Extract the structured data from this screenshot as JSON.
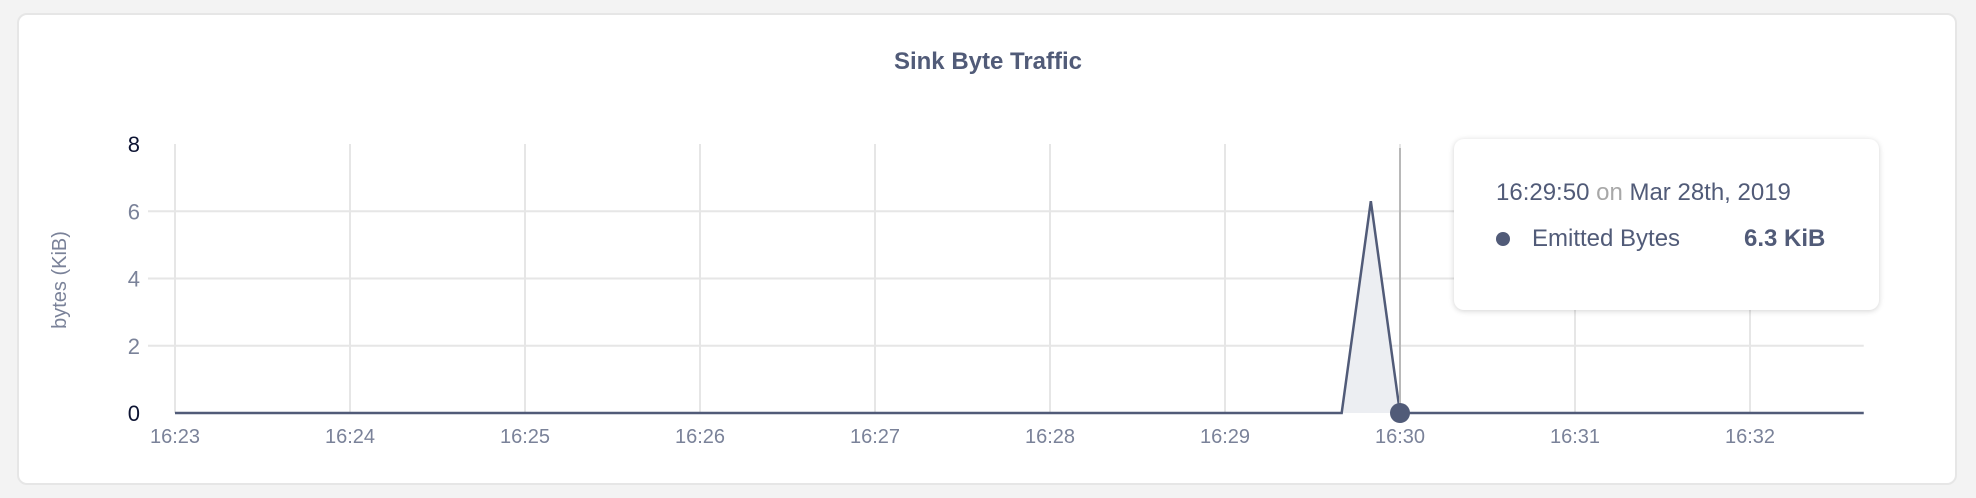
{
  "chart_data": {
    "type": "area",
    "title": "Sink Byte Traffic",
    "xlabel": "",
    "ylabel": "bytes (KiB)",
    "x_ticks": [
      "16:23",
      "16:24",
      "16:25",
      "16:26",
      "16:27",
      "16:28",
      "16:29",
      "16:30",
      "16:31",
      "16:32"
    ],
    "y_ticks": [
      "0",
      "2",
      "4",
      "6",
      "8"
    ],
    "ylim": [
      0,
      8
    ],
    "xlim": [
      "16:23:00",
      "16:32:39"
    ],
    "grid": true,
    "series": [
      {
        "name": "Emitted Bytes",
        "color": "#515b78",
        "fill": "#eceef2",
        "x": [
          "16:23:00",
          "16:29:40",
          "16:29:50",
          "16:30:00",
          "16:32:39"
        ],
        "y": [
          0,
          0,
          6.3,
          0,
          0
        ]
      }
    ],
    "hover_time": "16:30:00"
  },
  "tooltip": {
    "time": "16:29:50",
    "on": "on",
    "date": "Mar 28th, 2019",
    "series_name": "Emitted Bytes",
    "value": "6.3 KiB"
  }
}
